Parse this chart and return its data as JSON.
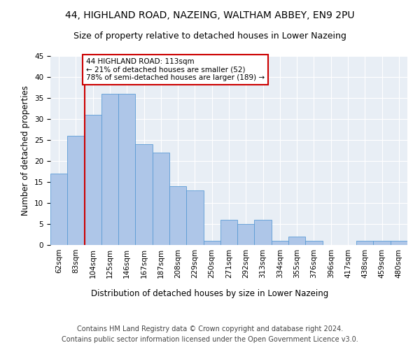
{
  "title1": "44, HIGHLAND ROAD, NAZEING, WALTHAM ABBEY, EN9 2PU",
  "title2": "Size of property relative to detached houses in Lower Nazeing",
  "xlabel": "Distribution of detached houses by size in Lower Nazeing",
  "ylabel": "Number of detached properties",
  "categories": [
    "62sqm",
    "83sqm",
    "104sqm",
    "125sqm",
    "146sqm",
    "167sqm",
    "187sqm",
    "208sqm",
    "229sqm",
    "250sqm",
    "271sqm",
    "292sqm",
    "313sqm",
    "334sqm",
    "355sqm",
    "376sqm",
    "396sqm",
    "417sqm",
    "438sqm",
    "459sqm",
    "480sqm"
  ],
  "values": [
    17,
    26,
    31,
    36,
    36,
    24,
    22,
    14,
    13,
    1,
    6,
    5,
    6,
    1,
    2,
    1,
    0,
    0,
    1,
    1,
    1
  ],
  "bar_color": "#aec6e8",
  "bar_edge_color": "#5b9bd5",
  "background_color": "#e8eef5",
  "grid_color": "#ffffff",
  "annotation_text": "44 HIGHLAND ROAD: 113sqm\n← 21% of detached houses are smaller (52)\n78% of semi-detached houses are larger (189) →",
  "annotation_box_color": "#ffffff",
  "annotation_box_edge": "#cc0000",
  "vline_color": "#cc0000",
  "ylim": [
    0,
    45
  ],
  "yticks": [
    0,
    5,
    10,
    15,
    20,
    25,
    30,
    35,
    40,
    45
  ],
  "footer1": "Contains HM Land Registry data © Crown copyright and database right 2024.",
  "footer2": "Contains public sector information licensed under the Open Government Licence v3.0.",
  "title_fontsize": 10,
  "subtitle_fontsize": 9,
  "axis_label_fontsize": 8.5,
  "tick_fontsize": 7.5,
  "footer_fontsize": 7
}
